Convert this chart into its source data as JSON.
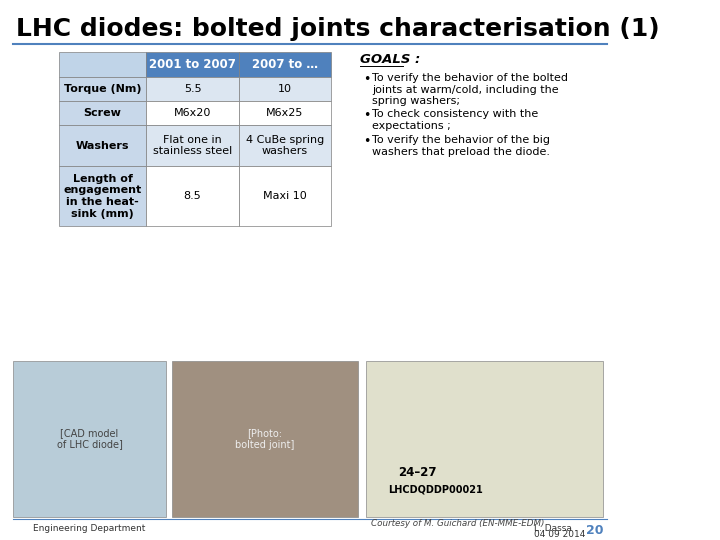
{
  "title": "LHC diodes: bolted joints characterisation (1)",
  "background_color": "#ffffff",
  "title_color": "#000000",
  "title_fontsize": 18,
  "table": {
    "col_headers": [
      "",
      "2001 to 2007",
      "2007 to …"
    ],
    "col_header_bg": "#4f81bd",
    "col_header_color": "#ffffff",
    "rows": [
      [
        "Torque (Nm)",
        "5.5",
        "10"
      ],
      [
        "Screw",
        "M6x20",
        "M6x25"
      ],
      [
        "Washers",
        "Flat one in\nstainless steel",
        "4 CuBe spring\nwashers"
      ],
      [
        "Length of\nengagement\nin the heat-\nsink (mm)",
        "8.5",
        "Maxi 10"
      ]
    ],
    "row_bg_even": "#dce6f1",
    "row_bg_odd": "#ffffff",
    "row_bg_first_col": "#c8d8ea",
    "text_color": "#000000",
    "border_color": "#7f7f7f"
  },
  "goals_title": "GOALS :",
  "goals_bullets": [
    "To verify the behavior of the bolted\njoints at warm/cold, including the\nspring washers;",
    "To check consistency with the\nexpectations ;",
    "To verify the behavior of the big\nwashers that preload the diode."
  ],
  "footer_left": "Engineering Department",
  "footer_right_line1": "L. Dassa",
  "footer_right_line2": "04 09 2014",
  "footer_page": "20",
  "courtesy": "Courtesy of M. Guichard (EN-MME-EDM)",
  "title_underline_color": "#4f81bd",
  "col_header_empty_bg": "#c0d4e8"
}
